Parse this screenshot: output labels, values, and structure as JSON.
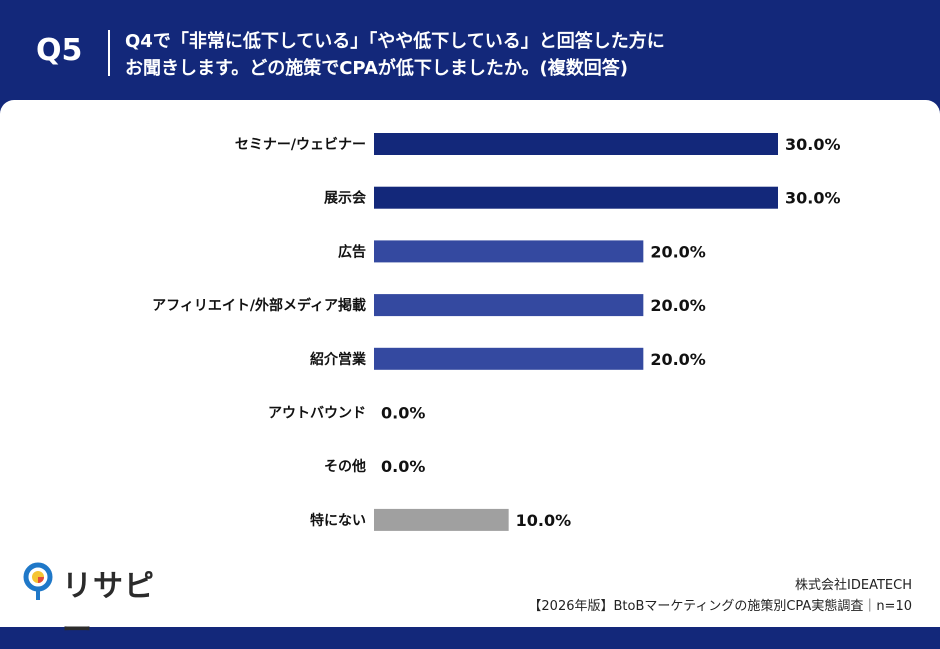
{
  "header": {
    "q_label": "Q5",
    "question_line1": "Q4で「非常に低下している」「やや低下している」と回答した方に",
    "question_line2": "お聞きします。どの施策でCPAが低下しましたか。(複数回答)"
  },
  "footer": {
    "logo_text": "リサピー",
    "company": "株式会社IDEATECH",
    "survey": "【2026年版】BtoBマーケティングの施策別CPA実態調査｜n=10"
  },
  "colors": {
    "header_bg": "#13287a",
    "bar_dark": "#13287a",
    "bar_mid": "#3449a0",
    "bar_gray": "#a0a0a0",
    "logo_yellow": "#f5c431",
    "logo_blue": "#1f78c8",
    "logo_red": "#e34a3a"
  },
  "chart_data": {
    "type": "bar",
    "orientation": "horizontal",
    "categories": [
      "セミナー/ウェビナー",
      "展示会",
      "広告",
      "アフィリエイト/外部メディア掲載",
      "紹介営業",
      "アウトバウンド",
      "その他",
      "特にない"
    ],
    "values": [
      30.0,
      30.0,
      20.0,
      20.0,
      20.0,
      0.0,
      0.0,
      10.0
    ],
    "value_labels": [
      "30.0%",
      "30.0%",
      "20.0%",
      "20.0%",
      "20.0%",
      "0.0%",
      "0.0%",
      "10.0%"
    ],
    "bar_colors": [
      "#13287a",
      "#13287a",
      "#3449a0",
      "#3449a0",
      "#3449a0",
      "#3449a0",
      "#3449a0",
      "#a0a0a0"
    ],
    "unit": "%",
    "xlim": [
      0,
      30
    ],
    "grid": false,
    "legend": "none"
  }
}
